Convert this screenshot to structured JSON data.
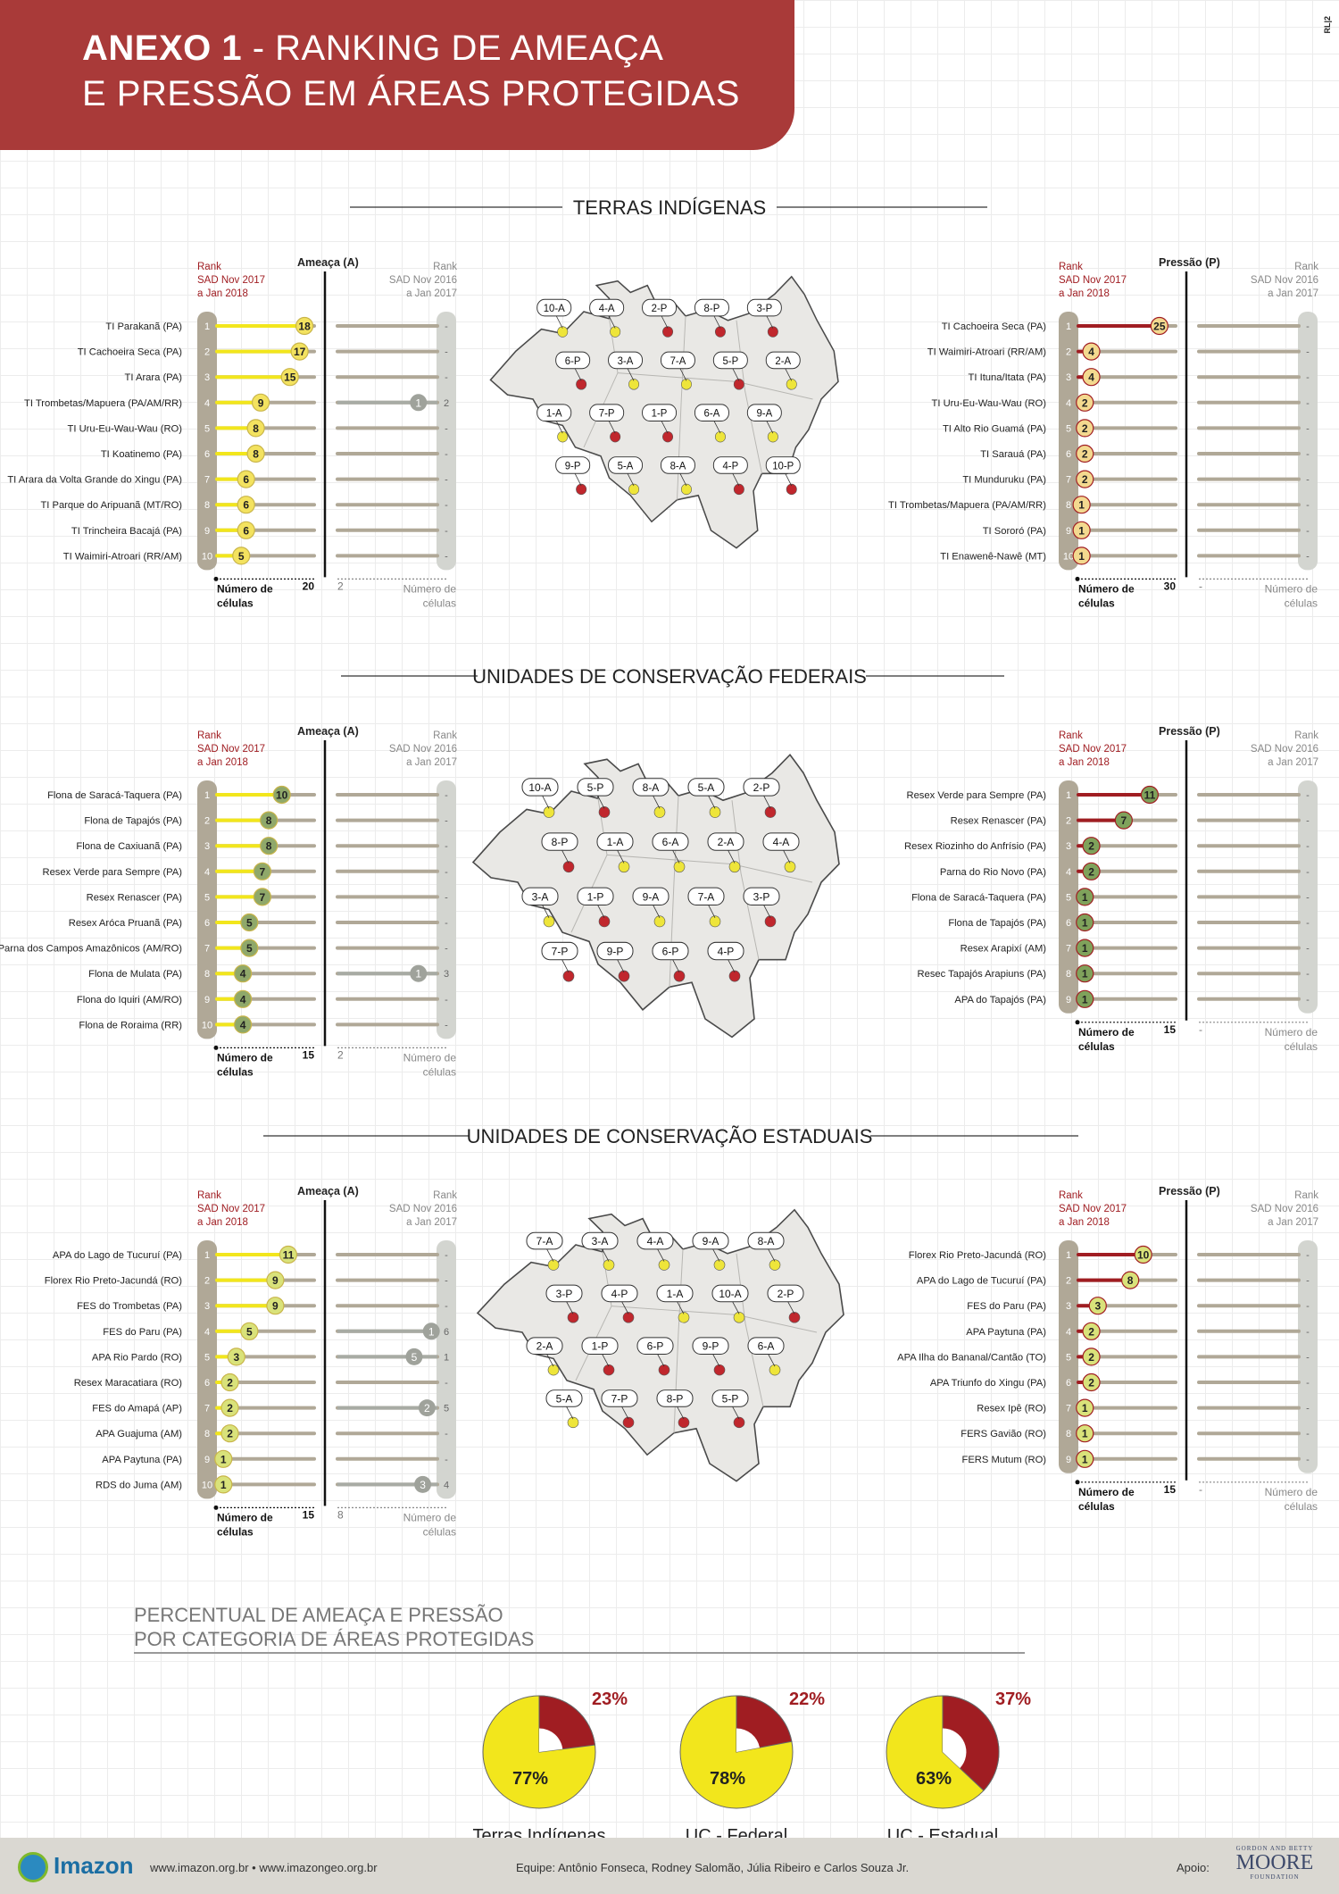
{
  "header": {
    "title_bold": "ANEXO 1",
    "title_rest": " - RANKING DE AMEAÇA",
    "title_line2": "E PRESSÃO EM ÁREAS PROTEGIDAS",
    "code": "RL|2"
  },
  "labels": {
    "ameaca": "Ameaça (A)",
    "pressao": "Pressão (P)",
    "rank_cur": [
      "Rank",
      "SAD Nov 2017",
      "a Jan 2018"
    ],
    "rank_prev": [
      "Rank",
      "SAD Nov 2016",
      "a Jan 2017"
    ],
    "num_celulas": [
      "Número de",
      "células"
    ]
  },
  "colors": {
    "threat": "#f2e61c",
    "pressure": "#a01d22",
    "track": "#b0a897",
    "prev_track": "#a8aba4",
    "rank_col_cur": "#b0a897",
    "rank_col_prev": "#d3d5d0",
    "map_fill": "#e9e8e5",
    "map_stroke": "#4a4a4a"
  },
  "chart_data": [
    {
      "type": "bar",
      "title": "TERRAS INDÍGENAS",
      "map_labels": [
        "10-A",
        "4-A",
        "2-P",
        "8-P",
        "3-P",
        "6-P",
        "3-A",
        "7-A",
        "5-P",
        "2-A",
        "1-A",
        "7-P",
        "1-P",
        "6-A",
        "9-A",
        "9-P",
        "5-A",
        "8-A",
        "4-P",
        "10-P"
      ],
      "threat": {
        "label": "Ameaça (A)",
        "xlim": [
          0,
          20
        ],
        "scale_label": "20",
        "prev_scale_label": "2",
        "categories": [
          "TI Parakanã (PA)",
          "TI Cachoeira Seca (PA)",
          "TI Arara (PA)",
          "TI Trombetas/Mapuera (PA/AM/RR)",
          "TI Uru-Eu-Wau-Wau (RO)",
          "TI Koatinemo (PA)",
          "TI Arara da Volta Grande do Xingu (PA)",
          "TI Parque do Aripuanã (MT/RO)",
          "TI Trincheira Bacajá  (PA)",
          "TI Waimiri-Atroari (RR/AM)"
        ],
        "values": [
          18,
          17,
          15,
          9,
          8,
          8,
          6,
          6,
          6,
          5
        ],
        "ranks": [
          "1",
          "2",
          "3",
          "4",
          "5",
          "6",
          "7",
          "8",
          "9",
          "10"
        ],
        "prev_values": [
          null,
          null,
          null,
          1,
          null,
          null,
          null,
          null,
          null,
          null
        ],
        "prev_ranks": [
          "-",
          "-",
          "-",
          "2",
          "-",
          "-",
          "-",
          "-",
          "-",
          "-"
        ]
      },
      "pressure": {
        "label": "Pressão (P)",
        "xlim": [
          0,
          30
        ],
        "scale_label": "30",
        "prev_scale_label": "-",
        "categories": [
          "TI Cachoeira Seca (PA)",
          "TI Waimiri-Atroari (RR/AM)",
          "TI Ituna/Itata (PA)",
          "TI Uru-Eu-Wau-Wau (RO)",
          "TI Alto Rio Guamá (PA)",
          "TI Sarauá (PA)",
          "TI Munduruku (PA)",
          "TI Trombetas/Mapuera (PA/AM/RR)",
          "TI Sororó (PA)",
          "TI Enawenê-Nawê (MT)"
        ],
        "values": [
          25,
          4,
          4,
          2,
          2,
          2,
          2,
          1,
          1,
          1
        ],
        "ranks": [
          "1",
          "2",
          "3",
          "4",
          "5",
          "6",
          "7",
          "8",
          "9",
          "10"
        ],
        "prev_values": [
          null,
          null,
          null,
          null,
          null,
          null,
          null,
          null,
          null,
          null
        ],
        "prev_ranks": [
          "-",
          "-",
          "-",
          "-",
          "-",
          "-",
          "-",
          "-",
          "-",
          "-"
        ]
      }
    },
    {
      "type": "bar",
      "title": "UNIDADES DE CONSERVAÇÃO FEDERAIS",
      "map_labels": [
        "10-A",
        "5-P",
        "8-A",
        "5-A",
        "2-P",
        "8-P",
        "1-A",
        "6-A",
        "2-A",
        "4-A",
        "3-A",
        "1-P",
        "9-A",
        "7-A",
        "3-P",
        "7-P",
        "9-P",
        "6-P",
        "4-P"
      ],
      "threat": {
        "label": "Ameaça (A)",
        "xlim": [
          0,
          15
        ],
        "scale_label": "15",
        "prev_scale_label": "2",
        "categories": [
          "Flona de Saracá-Taquera (PA)",
          "Flona de Tapajós (PA)",
          "Flona de Caxiuanã (PA)",
          "Resex Verde para Sempre (PA)",
          "Resex Renascer (PA)",
          "Resex Aróca Pruanã (PA)",
          "Parna dos Campos Amazônicos (AM/RO)",
          "Flona de Mulata (PA)",
          "Flona do Iquiri (AM/RO)",
          "Flona de Roraima (RR)"
        ],
        "values": [
          10,
          8,
          8,
          7,
          7,
          5,
          5,
          4,
          4,
          4
        ],
        "ranks": [
          "1",
          "2",
          "3",
          "4",
          "5",
          "6",
          "7",
          "8",
          "9",
          "10"
        ],
        "prev_values": [
          null,
          null,
          null,
          null,
          null,
          null,
          null,
          1,
          null,
          null
        ],
        "prev_ranks": [
          "-",
          "-",
          "-",
          "-",
          "-",
          "-",
          "-",
          "3",
          "-",
          "-"
        ]
      },
      "pressure": {
        "label": "Pressão (P)",
        "xlim": [
          0,
          15
        ],
        "scale_label": "15",
        "prev_scale_label": "-",
        "categories": [
          "Resex Verde para Sempre (PA)",
          "Resex Renascer (PA)",
          "Resex Riozinho do Anfrísio (PA)",
          "Parna do Rio Novo (PA)",
          "Flona de Saracá-Taquera (PA)",
          "Flona de Tapajós (PA)",
          "Resex Arapixí (AM)",
          "Resec Tapajós Arapiuns (PA)",
          "APA do Tapajós (PA)"
        ],
        "values": [
          11,
          7,
          2,
          2,
          1,
          1,
          1,
          1,
          1
        ],
        "ranks": [
          "1",
          "2",
          "3",
          "4",
          "5",
          "6",
          "7",
          "8",
          "9"
        ],
        "prev_values": [
          null,
          null,
          null,
          null,
          null,
          null,
          null,
          null,
          null
        ],
        "prev_ranks": [
          "-",
          "-",
          "-",
          "-",
          "-",
          "-",
          "-",
          "-",
          "-"
        ]
      }
    },
    {
      "type": "bar",
      "title": "UNIDADES DE CONSERVAÇÃO ESTADUAIS",
      "map_labels": [
        "7-A",
        "3-A",
        "4-A",
        "9-A",
        "8-A",
        "3-P",
        "4-P",
        "1-A",
        "10-A",
        "2-P",
        "2-A",
        "1-P",
        "6-P",
        "9-P",
        "6-A",
        "5-A",
        "7-P",
        "8-P",
        "5-P"
      ],
      "threat": {
        "label": "Ameaça (A)",
        "xlim": [
          0,
          15
        ],
        "scale_label": "15",
        "prev_scale_label": "8",
        "categories": [
          "APA do Lago de Tucuruí (PA)",
          "Florex Rio Preto-Jacundá (RO)",
          "FES do Trombetas (PA)",
          "FES do Paru (PA)",
          "APA Rio Pardo (RO)",
          "Resex Maracatiara (RO)",
          "FES do Amapá (AP)",
          "APA Guajuma (AM)",
          "APA Paytuna (PA)",
          "RDS do Juma (AM)"
        ],
        "values": [
          11,
          9,
          9,
          5,
          3,
          2,
          2,
          2,
          1,
          1
        ],
        "ranks": [
          "1",
          "2",
          "3",
          "4",
          "5",
          "6",
          "7",
          "8",
          "9",
          "10"
        ],
        "prev_values": [
          null,
          null,
          null,
          1,
          5,
          null,
          2,
          null,
          null,
          3
        ],
        "prev_ranks": [
          "-",
          "-",
          "-",
          "6",
          "1",
          "-",
          "5",
          "-",
          "-",
          "4"
        ]
      },
      "pressure": {
        "label": "Pressão (P)",
        "xlim": [
          0,
          15
        ],
        "scale_label": "15",
        "prev_scale_label": "-",
        "categories": [
          "Florex Rio Preto-Jacundá (RO)",
          "APA do Lago de Tucuruí (PA)",
          "FES do Paru (PA)",
          "APA Paytuna (PA)",
          "APA Ilha do Bananal/Cantão (TO)",
          "APA Triunfo do Xingu (PA)",
          "Resex Ipê (RO)",
          "FERS Gavião (RO)",
          "FERS Mutum (RO)"
        ],
        "values": [
          10,
          8,
          3,
          2,
          2,
          2,
          1,
          1,
          1
        ],
        "ranks": [
          "1",
          "2",
          "3",
          "4",
          "5",
          "6",
          "7",
          "8",
          "9"
        ],
        "prev_values": [
          null,
          null,
          null,
          null,
          null,
          null,
          null,
          null,
          null
        ],
        "prev_ranks": [
          "-",
          "-",
          "-",
          "-",
          "-",
          "-",
          "-",
          "-",
          "-"
        ]
      }
    },
    {
      "type": "pie",
      "title_lines": [
        "PERCENTUAL DE AMEAÇA E PRESSÃO",
        "POR CATEGORIA DE ÁREAS PROTEGIDAS"
      ],
      "charts": [
        {
          "name": "Terras Indígenas",
          "slices": [
            {
              "label": "77%",
              "value": 77,
              "kind": "threat"
            },
            {
              "label": "23%",
              "value": 23,
              "kind": "pressure"
            }
          ]
        },
        {
          "name": "UC - Federal",
          "slices": [
            {
              "label": "78%",
              "value": 78,
              "kind": "threat"
            },
            {
              "label": "22%",
              "value": 22,
              "kind": "pressure"
            }
          ]
        },
        {
          "name": "UC - Estadual",
          "slices": [
            {
              "label": "63%",
              "value": 63,
              "kind": "threat"
            },
            {
              "label": "37%",
              "value": 37,
              "kind": "pressure"
            }
          ]
        }
      ]
    }
  ],
  "footer": {
    "logo": "Imazon",
    "urls": "www.imazon.org.br • www.imazongeo.org.br",
    "team": "Equipe: Antônio Fonseca, Rodney Salomão, Júlia Ribeiro e Carlos Souza Jr.",
    "apoio": "Apoio:",
    "sponsor_small": "GORDON AND BETTY",
    "sponsor_big": "MOORE",
    "sponsor_sub": "FOUNDATION"
  }
}
